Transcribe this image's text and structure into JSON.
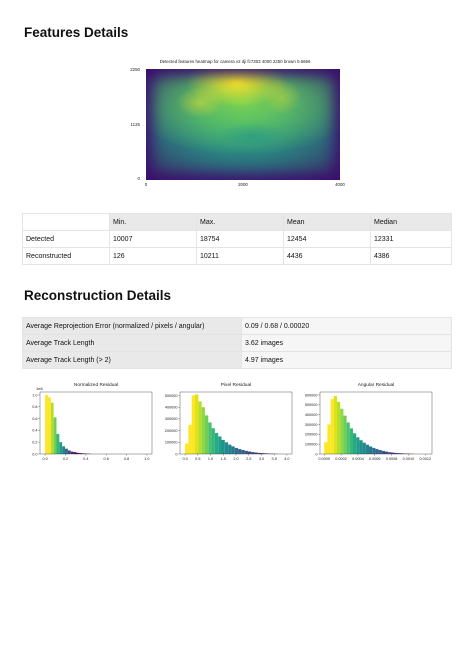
{
  "features": {
    "title": "Features Details",
    "heatmap": {
      "title": "Detected features heatmap for camera v2 dji fc7303 4000 2250 brown 0.6666",
      "yticks": [
        "2250",
        "1125",
        "0"
      ],
      "xticks": [
        "0",
        "2000",
        "4000"
      ]
    },
    "table": {
      "headers": [
        "",
        "Min.",
        "Max.",
        "Mean",
        "Median"
      ],
      "rows": [
        [
          "Detected",
          "10007",
          "18754",
          "12454",
          "12331"
        ],
        [
          "Reconstructed",
          "126",
          "10211",
          "4436",
          "4386"
        ]
      ]
    }
  },
  "reconstruction": {
    "title": "Reconstruction Details",
    "rows": [
      {
        "label": "Average Reprojection Error (normalized / pixels / angular)",
        "value": "0.09 / 0.68 / 0.00020"
      },
      {
        "label": "Average Track Length",
        "value": "3.62 images"
      },
      {
        "label": "Average Track Length (> 2)",
        "value": "4.97 images"
      }
    ]
  },
  "chart_data": [
    {
      "type": "bar",
      "title": "Normalized Residual",
      "y_multiplier_label": "1e6",
      "xticks": [
        "0.0",
        "0.2",
        "0.4",
        "0.6",
        "0.8",
        "1.0"
      ],
      "yticks": [
        "0.0",
        "0.2",
        "0.4",
        "0.6",
        "0.8",
        "1.0"
      ],
      "xlim": [
        -0.05,
        1.05
      ],
      "ylim": [
        0,
        1.05
      ],
      "bin_width": 0.028,
      "x": [
        0.0,
        0.028,
        0.056,
        0.084,
        0.112,
        0.14,
        0.168,
        0.196,
        0.224,
        0.252,
        0.28,
        0.308,
        0.336,
        0.364,
        0.392,
        0.42
      ],
      "values": [
        1.0,
        0.96,
        0.87,
        0.62,
        0.34,
        0.2,
        0.13,
        0.09,
        0.06,
        0.04,
        0.03,
        0.02,
        0.015,
        0.01,
        0.007,
        0.005
      ],
      "colors": [
        "#fde725",
        "#fde725",
        "#b5de2b",
        "#6ece58",
        "#35b779",
        "#1f9e89",
        "#26828e",
        "#31688e",
        "#3e4989",
        "#482878",
        "#440154",
        "#440154",
        "#440154",
        "#440154",
        "#440154",
        "#440154"
      ]
    },
    {
      "type": "bar",
      "title": "Pixel Residual",
      "xticks": [
        "0.0",
        "0.5",
        "1.0",
        "1.5",
        "2.0",
        "2.5",
        "3.0",
        "3.5",
        "4.0"
      ],
      "yticks": [
        "0",
        "100000",
        "200000",
        "300000",
        "400000",
        "500000"
      ],
      "xlim": [
        -0.2,
        4.2
      ],
      "ylim": [
        0,
        530000
      ],
      "bin_width": 0.13,
      "x": [
        0.0,
        0.13,
        0.26,
        0.39,
        0.52,
        0.65,
        0.78,
        0.91,
        1.04,
        1.17,
        1.3,
        1.43,
        1.56,
        1.69,
        1.82,
        1.95,
        2.08,
        2.21,
        2.34,
        2.47,
        2.6,
        2.73,
        2.86,
        2.99,
        3.12,
        3.25,
        3.38,
        3.51
      ],
      "values": [
        90000,
        250000,
        500000,
        510000,
        450000,
        400000,
        330000,
        270000,
        220000,
        180000,
        150000,
        120000,
        100000,
        80000,
        65000,
        52000,
        42000,
        34000,
        27000,
        21000,
        16000,
        12000,
        9000,
        7000,
        5000,
        3500,
        2500,
        1500
      ],
      "colors": [
        "#fde725",
        "#fde725",
        "#fde725",
        "#dde318",
        "#b5de2b",
        "#8fd744",
        "#6ece58",
        "#4ac16d",
        "#35b779",
        "#25ab82",
        "#1f9e89",
        "#20928c",
        "#23898e",
        "#26828e",
        "#2a788e",
        "#2d708e",
        "#31688e",
        "#355f8d",
        "#39568c",
        "#3e4989",
        "#433e85",
        "#46327e",
        "#482878",
        "#471c6f",
        "#470f62",
        "#450559",
        "#440154",
        "#440154"
      ]
    },
    {
      "type": "bar",
      "title": "Angular Residual",
      "xticks": [
        "0.0000",
        "0.0002",
        "0.0004",
        "0.0006",
        "0.0008",
        "0.0010",
        "0.0012"
      ],
      "yticks": [
        "0",
        "100000",
        "200000",
        "300000",
        "400000",
        "500000",
        "600000"
      ],
      "xlim": [
        -5e-05,
        0.00128
      ],
      "ylim": [
        0,
        630000
      ],
      "bin_width": 3.8e-05,
      "x": [
        0.0,
        3.8e-05,
        7.6e-05,
        0.000114,
        0.000152,
        0.00019,
        0.000228,
        0.000266,
        0.000304,
        0.000342,
        0.00038,
        0.000418,
        0.000456,
        0.000494,
        0.000532,
        0.00057,
        0.000608,
        0.000646,
        0.000684,
        0.000722,
        0.00076,
        0.000798,
        0.000836,
        0.000874,
        0.000912,
        0.00095,
        0.000988,
        0.001026
      ],
      "values": [
        120000,
        300000,
        560000,
        590000,
        530000,
        460000,
        390000,
        320000,
        260000,
        210000,
        170000,
        140000,
        115000,
        95000,
        77000,
        62000,
        50000,
        40000,
        31000,
        24000,
        18000,
        14000,
        10000,
        8000,
        6000,
        4000,
        3000,
        2000
      ],
      "colors": [
        "#fde725",
        "#fde725",
        "#fde725",
        "#dde318",
        "#b5de2b",
        "#8fd744",
        "#6ece58",
        "#4ac16d",
        "#35b779",
        "#25ab82",
        "#1f9e89",
        "#20928c",
        "#23898e",
        "#26828e",
        "#2a788e",
        "#2d708e",
        "#31688e",
        "#355f8d",
        "#39568c",
        "#3e4989",
        "#433e85",
        "#46327e",
        "#482878",
        "#471c6f",
        "#470f62",
        "#450559",
        "#440154",
        "#440154"
      ]
    }
  ]
}
